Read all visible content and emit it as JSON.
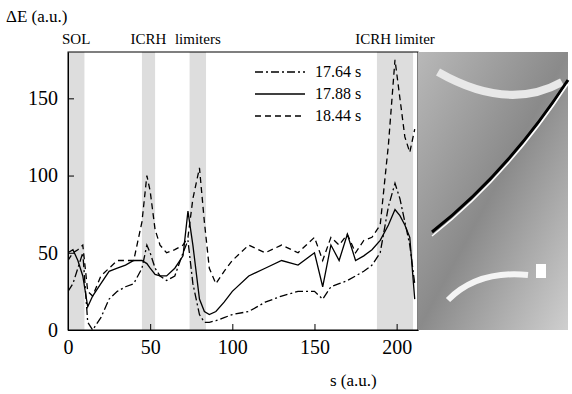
{
  "chart_data": {
    "type": "line",
    "y_label": "ΔE (a.u.)",
    "x_label": "s (a.u.)",
    "xlim": [
      0,
      213
    ],
    "ylim": [
      0,
      180
    ],
    "xticks": [
      0,
      50,
      100,
      150,
      200
    ],
    "yticks": [
      0,
      50,
      100,
      150
    ],
    "grid": false,
    "legend": "top-right",
    "x": [
      0,
      3,
      6,
      9,
      12,
      15,
      20,
      25,
      30,
      35,
      40,
      45,
      48,
      50,
      53,
      56,
      60,
      65,
      70,
      73,
      76,
      80,
      83,
      86,
      90,
      95,
      100,
      110,
      120,
      130,
      140,
      150,
      155,
      160,
      165,
      170,
      175,
      180,
      185,
      190,
      195,
      199,
      202,
      205,
      208,
      211
    ],
    "series": [
      {
        "name": "17.64 s",
        "color": "#000000",
        "line_style": "dashdot",
        "values": [
          25,
          30,
          40,
          50,
          5,
          0,
          8,
          20,
          25,
          28,
          30,
          40,
          55,
          50,
          40,
          35,
          32,
          35,
          50,
          58,
          30,
          10,
          5,
          5,
          6,
          8,
          10,
          12,
          18,
          22,
          25,
          25,
          20,
          28,
          30,
          32,
          35,
          38,
          42,
          50,
          80,
          95,
          85,
          70,
          55,
          30
        ]
      },
      {
        "name": "17.88 s",
        "color": "#000000",
        "line_style": "solid",
        "values": [
          50,
          52,
          45,
          35,
          15,
          22,
          30,
          38,
          40,
          42,
          45,
          45,
          43,
          40,
          36,
          35,
          35,
          40,
          48,
          77,
          55,
          20,
          12,
          10,
          12,
          18,
          25,
          35,
          40,
          45,
          42,
          50,
          28,
          55,
          45,
          62,
          45,
          48,
          52,
          58,
          68,
          78,
          74,
          68,
          60,
          20
        ]
      },
      {
        "name": "18.44 s",
        "color": "#000000",
        "line_style": "dashed",
        "values": [
          45,
          50,
          52,
          55,
          25,
          22,
          35,
          40,
          45,
          45,
          45,
          70,
          100,
          90,
          65,
          55,
          50,
          52,
          55,
          60,
          85,
          105,
          70,
          40,
          30,
          38,
          45,
          55,
          50,
          55,
          50,
          60,
          45,
          60,
          55,
          62,
          50,
          58,
          60,
          68,
          120,
          175,
          150,
          125,
          115,
          130
        ]
      }
    ],
    "bands": [
      {
        "label": "SOL",
        "x": [
          0,
          10
        ]
      },
      {
        "label": "ICRH",
        "x": [
          45,
          53
        ]
      },
      {
        "label": "limiters",
        "x": [
          74,
          84
        ]
      },
      {
        "label": "ICRH limiter",
        "x": [
          188,
          210
        ]
      }
    ]
  }
}
